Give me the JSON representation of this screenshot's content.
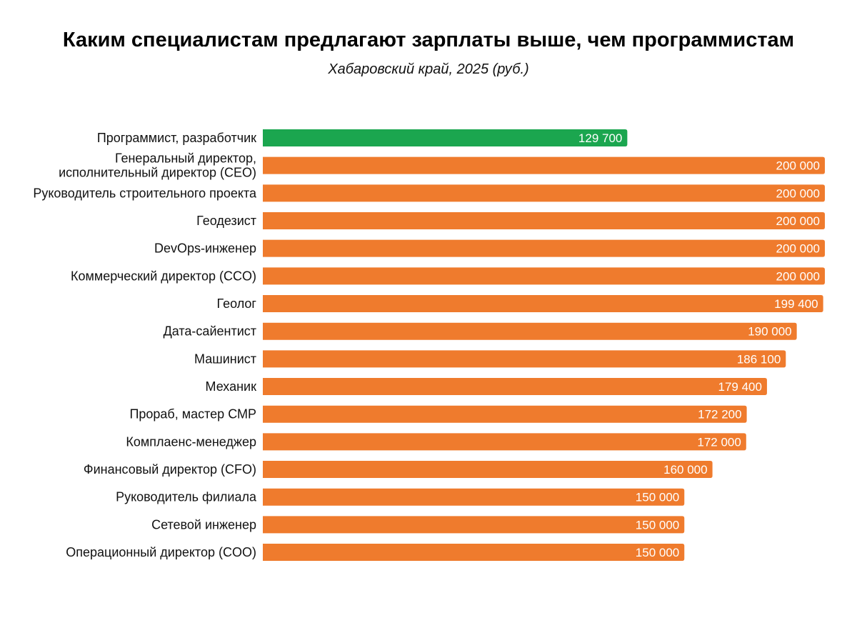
{
  "chart_data": {
    "type": "bar",
    "orientation": "horizontal",
    "title": "Каким специалистам предлагают зарплаты выше, чем программистам",
    "subtitle": "Хабаровский край, 2025 (руб.)",
    "xlabel": "",
    "ylabel": "",
    "xlim": [
      0,
      200000
    ],
    "grid": false,
    "colors": {
      "highlight": "#1ba64f",
      "default": "#ef7b2d"
    },
    "categories": [
      "Программист, разработчик",
      "Генеральный директор,\nисполнительный директор (CEO)",
      "Руководитель строительного проекта",
      "Геодезист",
      "DevOps-инженер",
      "Коммерческий директор (CCO)",
      "Геолог",
      "Дата-сайентист",
      "Машинист",
      "Механик",
      "Прораб, мастер СМР",
      "Комплаенс-менеджер",
      "Финансовый директор (CFO)",
      "Руководитель филиала",
      "Сетевой инженер",
      "Операционный директор (COO)"
    ],
    "values": [
      129700,
      200000,
      200000,
      200000,
      200000,
      200000,
      199400,
      190000,
      186100,
      179400,
      172200,
      172000,
      160000,
      150000,
      150000,
      150000
    ],
    "value_labels": [
      "129 700",
      "200 000",
      "200 000",
      "200 000",
      "200 000",
      "200 000",
      "199 400",
      "190 000",
      "186 100",
      "179 400",
      "172 200",
      "172 000",
      "160 000",
      "150 000",
      "150 000",
      "150 000"
    ],
    "highlight_index": 0
  }
}
